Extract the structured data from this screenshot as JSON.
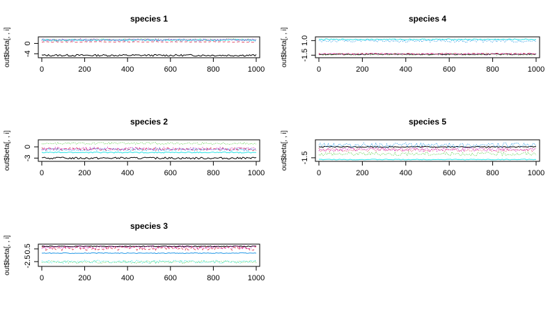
{
  "chart_data": [
    {
      "type": "line",
      "title": "species 1",
      "ylabel": "out$beta[, , i]",
      "xticks": [
        "0",
        "200",
        "400",
        "600",
        "800",
        "1000"
      ],
      "yticks": [
        "-4",
        "0"
      ],
      "xlim": [
        0,
        1000
      ],
      "ylim": [
        -5,
        2
      ],
      "series": [
        {
          "color": "#000000",
          "style": "solid",
          "level": -4.6,
          "noise": 0.05
        },
        {
          "color": "#df536b",
          "style": "dashed",
          "level": 0.6,
          "noise": 0.02
        },
        {
          "color": "#61d04f",
          "style": "dotted",
          "level": 1.4,
          "noise": 0.06
        },
        {
          "color": "#2297e6",
          "style": "dotted",
          "level": 1.2,
          "noise": 0.06
        },
        {
          "color": "#28e2e5",
          "style": "solid",
          "level": 1.35,
          "noise": 0.04
        },
        {
          "color": "#cd0bbc",
          "style": "dotted",
          "level": 1.45,
          "noise": 0.06
        }
      ]
    },
    {
      "type": "line",
      "title": "species 4",
      "ylabel": "out$beta[, , i]",
      "xticks": [
        "0",
        "200",
        "400",
        "600",
        "800",
        "1000"
      ],
      "yticks": [
        "-1.5",
        "1.0"
      ],
      "xlim": [
        0,
        1000
      ],
      "ylim": [
        -1.7,
        1.4
      ],
      "series": [
        {
          "color": "#000000",
          "style": "solid",
          "level": -1.35,
          "noise": 0.03
        },
        {
          "color": "#df536b",
          "style": "dashed",
          "level": -1.25,
          "noise": 0.03
        },
        {
          "color": "#61d04f",
          "style": "dotted",
          "level": -1.4,
          "noise": 0.05
        },
        {
          "color": "#2297e6",
          "style": "dotted",
          "level": 0.95,
          "noise": 0.08
        },
        {
          "color": "#28e2e5",
          "style": "solid",
          "level": 1.2,
          "noise": 0.03
        },
        {
          "color": "#cd0bbc",
          "style": "dotted",
          "level": -1.3,
          "noise": 0.04
        }
      ]
    },
    {
      "type": "line",
      "title": "species 2",
      "ylabel": "out$beta[, , i]",
      "xticks": [
        "0",
        "200",
        "400",
        "600",
        "800",
        "1000"
      ],
      "yticks": [
        "-3",
        "0"
      ],
      "xlim": [
        0,
        1000
      ],
      "ylim": [
        -3.5,
        1.5
      ],
      "series": [
        {
          "color": "#000000",
          "style": "solid",
          "level": -3.0,
          "noise": 0.05
        },
        {
          "color": "#df536b",
          "style": "dashed",
          "level": -0.6,
          "noise": 0.08
        },
        {
          "color": "#61d04f",
          "style": "dotted",
          "level": 0.9,
          "noise": 0.06
        },
        {
          "color": "#2297e6",
          "style": "dotted",
          "level": -0.7,
          "noise": 0.08
        },
        {
          "color": "#28e2e5",
          "style": "solid",
          "level": -1.5,
          "noise": 0.03
        },
        {
          "color": "#cd0bbc",
          "style": "dotted",
          "level": -0.5,
          "noise": 0.08
        }
      ]
    },
    {
      "type": "line",
      "title": "species 5",
      "ylabel": "out$beta[, , i]",
      "xticks": [
        "0",
        "200",
        "400",
        "600",
        "800",
        "1000"
      ],
      "yticks": [
        "-1.5"
      ],
      "xlim": [
        0,
        1000
      ],
      "ylim": [
        -2.0,
        2.3
      ],
      "series": [
        {
          "color": "#000000",
          "style": "solid",
          "level": 1.0,
          "noise": 0.03
        },
        {
          "color": "#df536b",
          "style": "dotted",
          "level": 0.3,
          "noise": 0.1
        },
        {
          "color": "#61d04f",
          "style": "dotted",
          "level": -0.6,
          "noise": 0.1
        },
        {
          "color": "#2297e6",
          "style": "dotted",
          "level": 1.4,
          "noise": 0.12
        },
        {
          "color": "#28e2e5",
          "style": "solid",
          "level": -1.9,
          "noise": 0.02
        },
        {
          "color": "#cd0bbc",
          "style": "dotted",
          "level": 0.4,
          "noise": 0.1
        }
      ]
    },
    {
      "type": "line",
      "title": "species 3",
      "ylabel": "out$beta[, , i]",
      "xticks": [
        "0",
        "200",
        "400",
        "600",
        "800",
        "1000"
      ],
      "yticks": [
        "-2.5",
        "0.5"
      ],
      "xlim": [
        0,
        1000
      ],
      "ylim": [
        -3.3,
        1.3
      ],
      "series": [
        {
          "color": "#000000",
          "style": "solid",
          "level": 1.1,
          "noise": 0.02
        },
        {
          "color": "#df536b",
          "style": "dashed",
          "level": 0.6,
          "noise": 0.1
        },
        {
          "color": "#61d04f",
          "style": "dotted",
          "level": -2.6,
          "noise": 0.06
        },
        {
          "color": "#2297e6",
          "style": "solid",
          "level": -0.5,
          "noise": 0.02
        },
        {
          "color": "#28e2e5",
          "style": "dotted",
          "level": -2.5,
          "noise": 0.08
        },
        {
          "color": "#cd0bbc",
          "style": "dotted",
          "level": 0.9,
          "noise": 0.08
        }
      ]
    }
  ]
}
